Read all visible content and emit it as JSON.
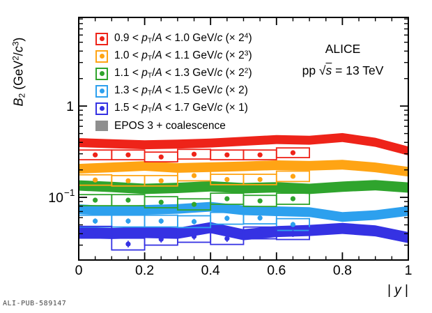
{
  "watermark": "ALI-PUB-589147",
  "annotations": {
    "experiment": "ALICE",
    "collision_tokens": [
      [
        "t",
        "pp  "
      ],
      [
        "t",
        "√"
      ],
      [
        "ols",
        "s"
      ],
      [
        "t",
        " = 13 TeV"
      ]
    ]
  },
  "axes": {
    "x": {
      "label_tokens": [
        [
          "t",
          "| "
        ],
        [
          "i",
          "y"
        ],
        [
          "t",
          " |"
        ]
      ],
      "range": [
        0,
        1
      ],
      "ticks": [
        0,
        0.2,
        0.4,
        0.6,
        0.8,
        1
      ],
      "tick_labels": [
        "0",
        "0.2",
        "0.4",
        "0.6",
        "0.8",
        "1"
      ],
      "minor_step": 0.05
    },
    "y": {
      "label_tokens": [
        [
          "i",
          "B"
        ],
        [
          "sub",
          "2"
        ],
        [
          "t",
          " (GeV"
        ],
        [
          "sup",
          "2"
        ],
        [
          "t",
          "/"
        ],
        [
          "i",
          "c"
        ],
        [
          "sup",
          "3"
        ],
        [
          "t",
          ")"
        ]
      ],
      "scale": "log",
      "range": [
        0.0206,
        9.35
      ],
      "major_ticks": [
        1,
        0.1
      ],
      "major_tick_labels": [
        {
          "main": "1",
          "sup": ""
        },
        {
          "main": "10",
          "sup": "−1"
        }
      ]
    }
  },
  "chart_data": {
    "type": "scatter+band",
    "title": "",
    "xlabel": "|y|",
    "ylabel": "B2 (GeV2/c3)",
    "log_y": true,
    "xlim": [
      0,
      1
    ],
    "ylim": [
      0.0206,
      9.35
    ],
    "grid": false,
    "legend_position": "top-left-inside",
    "point_bin_half_width": 0.05,
    "series": [
      {
        "name": "0.9 < pT/A < 1.0 GeV/c (x 2^4)",
        "label_tokens": [
          [
            "t",
            "0.9 < "
          ],
          [
            "i",
            "p"
          ],
          [
            "sub",
            "T"
          ],
          [
            "t",
            "/"
          ],
          [
            "i",
            "A"
          ],
          [
            "t",
            " < 1.0 GeV/"
          ],
          [
            "i",
            "c"
          ],
          [
            "t",
            " (× 2"
          ],
          [
            "sup",
            "4"
          ],
          [
            "t",
            ")"
          ]
        ],
        "color": "#ee2319",
        "x": [
          0.05,
          0.15,
          0.25,
          0.35,
          0.45,
          0.55,
          0.65
        ],
        "y": [
          0.292,
          0.292,
          0.277,
          0.297,
          0.292,
          0.292,
          0.308
        ],
        "stat_err_frac": 0.05,
        "box_ratio": 1.13,
        "band_x": [
          0,
          0.1,
          0.2,
          0.3,
          0.4,
          0.5,
          0.6,
          0.7,
          0.8,
          0.9,
          1.0
        ],
        "band_y": [
          0.398,
          0.387,
          0.377,
          0.383,
          0.394,
          0.411,
          0.43,
          0.422,
          0.452,
          0.401,
          0.322
        ],
        "band_ratio": 1.12
      },
      {
        "name": "1.0 < pT/A < 1.1 GeV/c (x 2^3)",
        "label_tokens": [
          [
            "t",
            "1.0 < "
          ],
          [
            "i",
            "p"
          ],
          [
            "sub",
            "T"
          ],
          [
            "t",
            "/"
          ],
          [
            "i",
            "A"
          ],
          [
            "t",
            " < 1.1 GeV/"
          ],
          [
            "i",
            "c"
          ],
          [
            "t",
            " (× 2"
          ],
          [
            "sup",
            "3"
          ],
          [
            "t",
            ")"
          ]
        ],
        "color": "#ffa414",
        "x": [
          0.05,
          0.15,
          0.25,
          0.35,
          0.45,
          0.55,
          0.65
        ],
        "y": [
          0.155,
          0.152,
          0.152,
          0.173,
          0.157,
          0.157,
          0.17
        ],
        "stat_err_frac": 0.05,
        "box_ratio": 1.14,
        "band_x": [
          0,
          0.1,
          0.2,
          0.3,
          0.4,
          0.5,
          0.6,
          0.7,
          0.8,
          0.9,
          1.0
        ],
        "band_y": [
          0.206,
          0.213,
          0.221,
          0.21,
          0.214,
          0.219,
          0.225,
          0.222,
          0.228,
          0.213,
          0.191
        ],
        "band_ratio": 1.13
      },
      {
        "name": "1.1 < pT/A < 1.3 GeV/c (x 2^2)",
        "label_tokens": [
          [
            "t",
            "1.1 < "
          ],
          [
            "i",
            "p"
          ],
          [
            "sub",
            "T"
          ],
          [
            "t",
            "/"
          ],
          [
            "i",
            "A"
          ],
          [
            "t",
            " < 1.3 GeV/"
          ],
          [
            "i",
            "c"
          ],
          [
            "t",
            " (× 2"
          ],
          [
            "sup",
            "2"
          ],
          [
            "t",
            ")"
          ]
        ],
        "color": "#2fa42d",
        "x": [
          0.05,
          0.15,
          0.25,
          0.35,
          0.45,
          0.55,
          0.65
        ],
        "y": [
          0.0932,
          0.0932,
          0.0885,
          0.0838,
          0.0966,
          0.0915,
          0.0966
        ],
        "stat_err_frac": 0.06,
        "box_ratio": 1.15,
        "band_x": [
          0,
          0.1,
          0.2,
          0.3,
          0.4,
          0.5,
          0.6,
          0.7,
          0.8,
          0.9,
          1.0
        ],
        "band_y": [
          0.135,
          0.13,
          0.124,
          0.127,
          0.132,
          0.126,
          0.129,
          0.124,
          0.131,
          0.136,
          0.128
        ],
        "band_ratio": 1.14
      },
      {
        "name": "1.3 < pT/A < 1.5 GeV/c (x 2)",
        "label_tokens": [
          [
            "t",
            "1.3 < "
          ],
          [
            "i",
            "p"
          ],
          [
            "sub",
            "T"
          ],
          [
            "t",
            "/"
          ],
          [
            "i",
            "A"
          ],
          [
            "t",
            " < 1.5 GeV/"
          ],
          [
            "i",
            "c"
          ],
          [
            "t",
            " (× 2)"
          ]
        ],
        "color": "#2da0ee",
        "x": [
          0.05,
          0.15,
          0.25,
          0.35,
          0.45,
          0.55,
          0.65
        ],
        "y": [
          0.055,
          0.055,
          0.055,
          0.0542,
          0.059,
          0.0595,
          0.0504
        ],
        "stat_err_frac": 0.07,
        "box_ratio": 1.16,
        "band_x": [
          0,
          0.1,
          0.2,
          0.3,
          0.4,
          0.5,
          0.6,
          0.7,
          0.8,
          0.9,
          1.0
        ],
        "band_y": [
          0.0742,
          0.0712,
          0.073,
          0.0748,
          0.079,
          0.0722,
          0.0705,
          0.069,
          0.061,
          0.064,
          0.071
        ],
        "band_ratio": 1.13
      },
      {
        "name": "1.5 < pT/A < 1.7 GeV/c (x 1)",
        "label_tokens": [
          [
            "t",
            "1.5 < "
          ],
          [
            "i",
            "p"
          ],
          [
            "sub",
            "T"
          ],
          [
            "t",
            "/"
          ],
          [
            "i",
            "A"
          ],
          [
            "t",
            " < 1.7 GeV/"
          ],
          [
            "i",
            "c"
          ],
          [
            "t",
            " (× 1)"
          ]
        ],
        "color": "#3532e3",
        "x": [
          0.05,
          0.15,
          0.25,
          0.35,
          0.45,
          0.55,
          0.65
        ],
        "y": [
          0.0415,
          0.0308,
          0.0348,
          0.0374,
          0.0354,
          0.0408,
          0.0401
        ],
        "stat_err_frac": 0.09,
        "box_ratio": 1.16,
        "band_x": [
          0,
          0.1,
          0.2,
          0.3,
          0.4,
          0.5,
          0.6,
          0.7,
          0.8,
          0.9,
          1.0
        ],
        "band_y": [
          0.041,
          0.0402,
          0.0412,
          0.0404,
          0.0466,
          0.039,
          0.0422,
          0.0434,
          0.0457,
          0.043,
          0.0363
        ],
        "band_ratio": 1.15
      }
    ],
    "model": {
      "label_tokens": [
        [
          "t",
          "EPOS 3 + coalescence"
        ]
      ],
      "color": "#8f8f8f"
    }
  }
}
